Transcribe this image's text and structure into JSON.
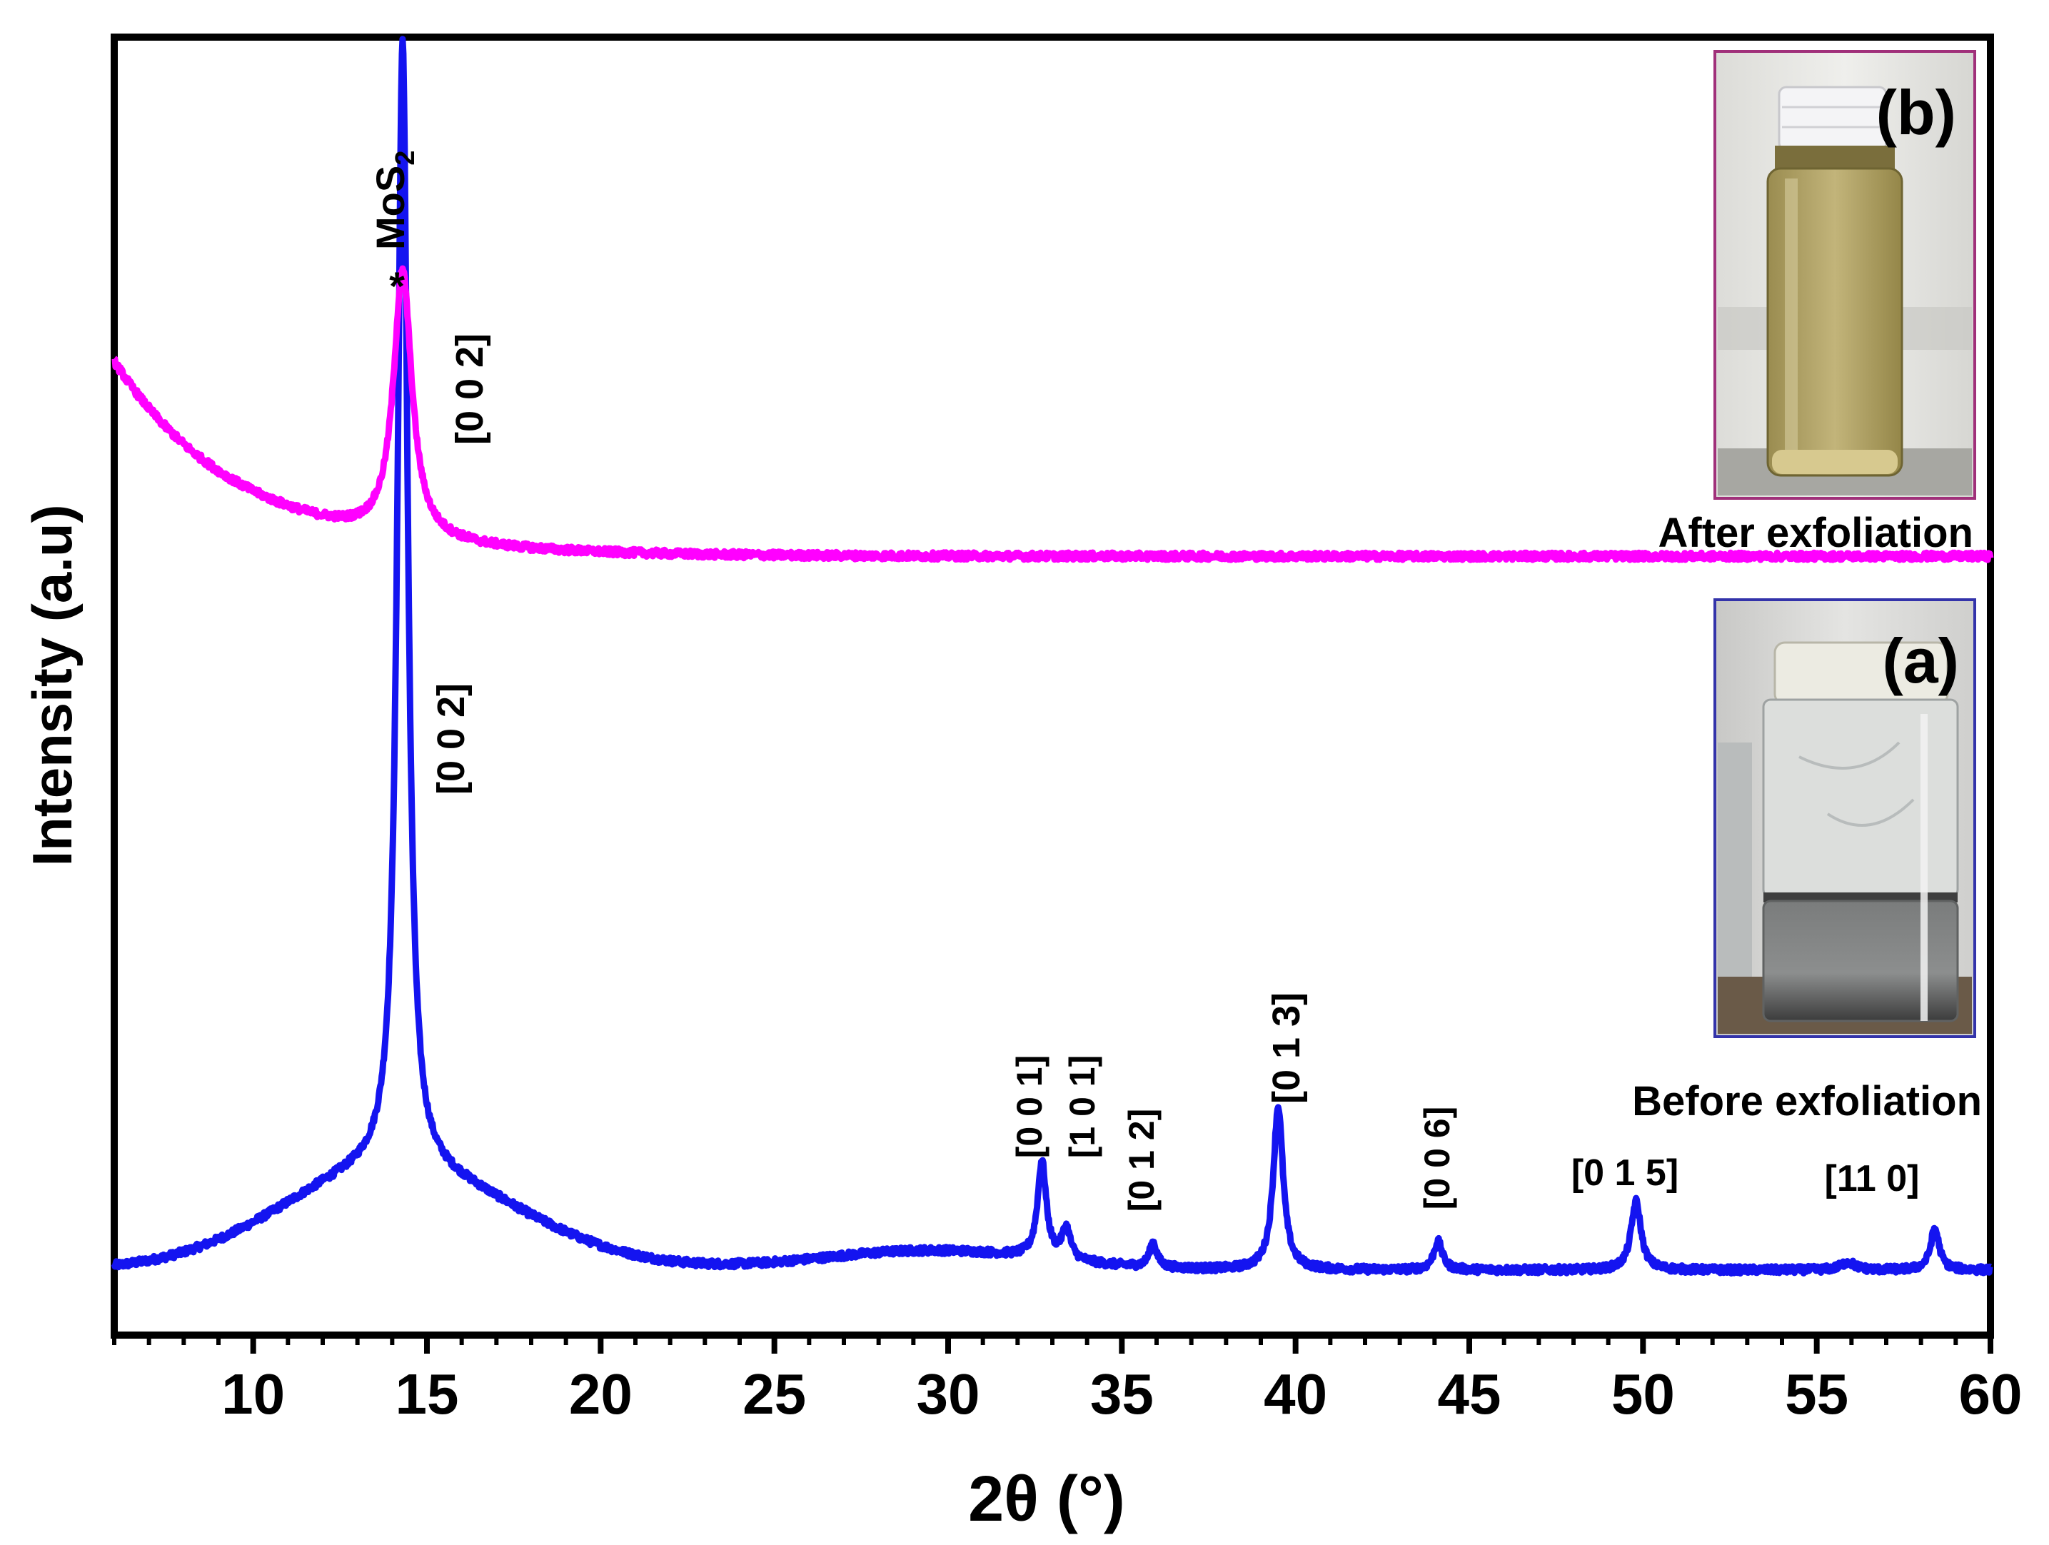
{
  "chart_data": {
    "type": "line",
    "title": "",
    "xlabel": "2θ (°)",
    "ylabel": "Intensity (a.u)",
    "xlim": [
      6,
      60
    ],
    "ylim": [
      0,
      100
    ],
    "xticks": [
      10,
      15,
      20,
      25,
      30,
      35,
      40,
      45,
      50,
      55,
      60
    ],
    "xtick_labels": [
      "10",
      "15",
      "20",
      "25",
      "30",
      "35",
      "40",
      "45",
      "50",
      "55",
      "60"
    ],
    "grid": false,
    "legend": "none",
    "series": [
      {
        "name": "Before exfoliation",
        "color": "#1414f0",
        "baseline": 5.0,
        "peaks": [
          {
            "x": 14.3,
            "height": 87,
            "width": 0.18
          },
          {
            "x": 32.7,
            "height": 7.5,
            "width": 0.15
          },
          {
            "x": 33.4,
            "height": 2.4,
            "width": 0.15
          },
          {
            "x": 35.9,
            "height": 1.9,
            "width": 0.13
          },
          {
            "x": 39.5,
            "height": 12.6,
            "width": 0.17
          },
          {
            "x": 44.1,
            "height": 2.2,
            "width": 0.15
          },
          {
            "x": 49.8,
            "height": 5.3,
            "width": 0.17
          },
          {
            "x": 55.9,
            "height": 0.6,
            "width": 0.25
          },
          {
            "x": 58.4,
            "height": 3.2,
            "width": 0.15
          }
        ],
        "hump": {
          "x": 14.0,
          "height": 7.8,
          "width": 3.2
        }
      },
      {
        "name": "After exfoliation",
        "color": "#ff00ff",
        "baseline": 60.0,
        "peaks": [
          {
            "x": 14.3,
            "height": 20.5,
            "width": 0.32
          }
        ],
        "low_angle_rise": {
          "amplitude": 15,
          "decay": 3.6
        }
      }
    ],
    "peak_labels": [
      {
        "text": "[0 0 2]",
        "series": "After exfoliation",
        "x": 15.7
      },
      {
        "text": "[0 0 2]",
        "series": "Before exfoliation",
        "x": 15.3
      },
      {
        "text": "[0 0 1]",
        "x": 32.6
      },
      {
        "text": "[1 0 1]",
        "x": 34.2
      },
      {
        "text": "[0 1 2]",
        "x": 36.0
      },
      {
        "text": "[0 1 3]",
        "x": 39.7
      },
      {
        "text": "[0 0 6]",
        "x": 44.1
      },
      {
        "text": "[0 1 5]",
        "x": 49.3
      },
      {
        "text": "[11 0]",
        "x": 57.1
      }
    ],
    "annotations": {
      "star": "*",
      "mos2_main": "MoS",
      "mos2_sub": "2",
      "after_label": "After exfoliation",
      "before_label": "Before exfoliation"
    }
  },
  "insets": [
    {
      "label": "(b)",
      "caption": "After exfoliation",
      "frame_color": "#a0307a",
      "liquid_color": "#b4a66a"
    },
    {
      "label": "(a)",
      "caption": "Before exfoliation",
      "frame_color": "#3333aa",
      "liquid_color": "#8a8c8c"
    }
  ]
}
